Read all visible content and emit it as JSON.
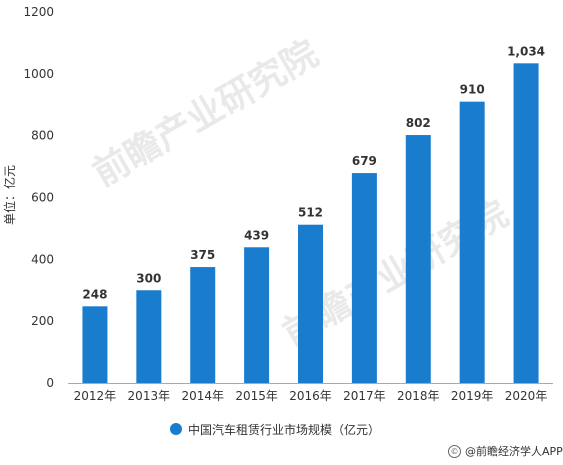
{
  "chart_data": {
    "type": "bar",
    "categories": [
      "2012年",
      "2013年",
      "2014年",
      "2015年",
      "2016年",
      "2017年",
      "2018年",
      "2019年",
      "2020年"
    ],
    "values": [
      248,
      300,
      375,
      439,
      512,
      679,
      802,
      910,
      1034
    ],
    "value_labels": [
      "248",
      "300",
      "375",
      "439",
      "512",
      "679",
      "802",
      "910",
      "1,034"
    ],
    "ylabel": "单位：亿元",
    "ylim": [
      0,
      1200
    ],
    "yticks": [
      0,
      200,
      400,
      600,
      800,
      1000,
      1200
    ],
    "grid": false,
    "legend_position": "bottom",
    "series": [
      {
        "name": "中国汽车租赁行业市场规模（亿元）",
        "values": [
          248,
          300,
          375,
          439,
          512,
          679,
          802,
          910,
          1034
        ]
      }
    ],
    "color": "#1a7ccc"
  },
  "legend_label": "中国汽车租赁行业市场规模（亿元）",
  "source_text": "@前瞻经济学人APP",
  "watermark_text": "前瞻产业研究院"
}
